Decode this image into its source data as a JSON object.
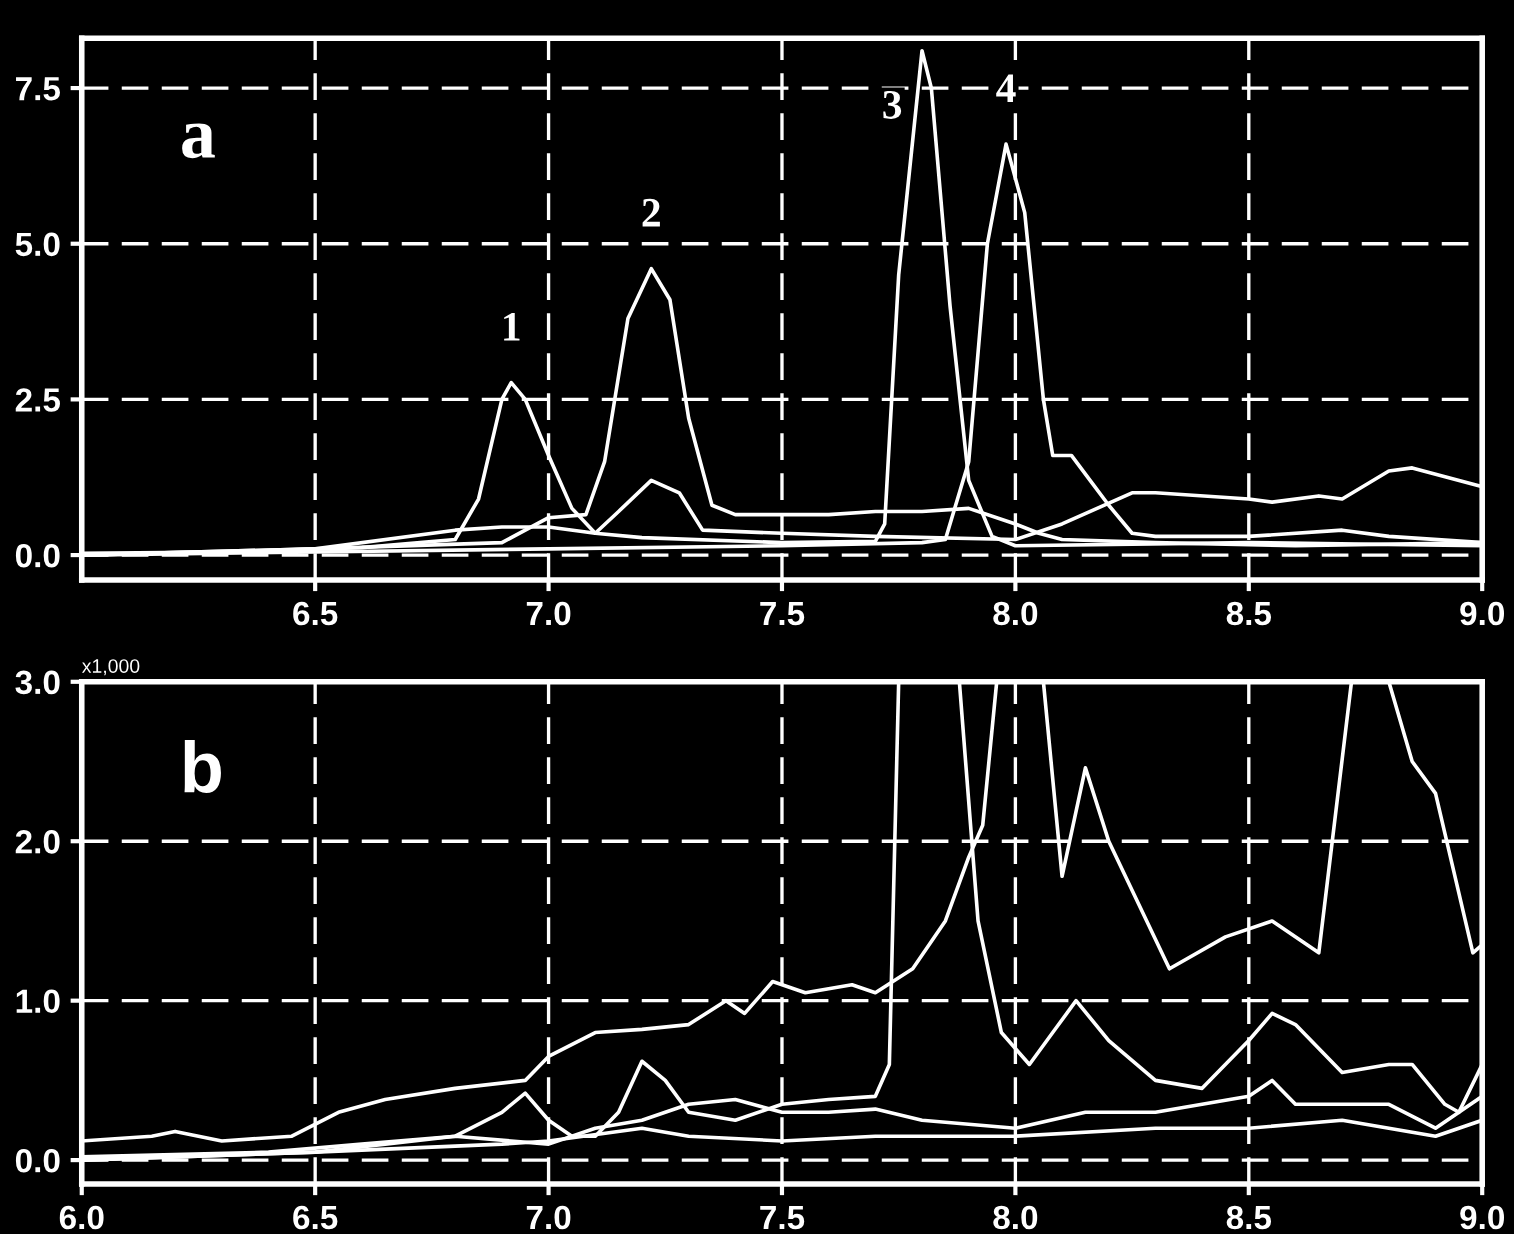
{
  "chart_data": [
    {
      "type": "line",
      "xlim": [
        6.0,
        9.0
      ],
      "ylim": [
        -0.4,
        8.3
      ],
      "xticks": [
        {
          "value": 6.5,
          "label": "6.5"
        },
        {
          "value": 7.0,
          "label": "7.0"
        },
        {
          "value": 7.5,
          "label": "7.5"
        },
        {
          "value": 8.0,
          "label": "8.0"
        },
        {
          "value": 8.5,
          "label": "8.5"
        },
        {
          "value": 9.0,
          "label": "9.0"
        }
      ],
      "yticks": [
        {
          "value": 0.0,
          "label": "0.0"
        },
        {
          "value": 2.5,
          "label": "2.5"
        },
        {
          "value": 5.0,
          "label": "5.0"
        },
        {
          "value": 7.5,
          "label": "7.5"
        }
      ],
      "grid": true,
      "line_style": "solid",
      "annotations": [
        "a",
        {
          "text": "1",
          "x": 6.92,
          "y": 2.77
        },
        {
          "text": "2",
          "x": 7.22,
          "y": 4.6
        },
        {
          "text": "3",
          "x": 7.8,
          "y": 8.1
        },
        {
          "text": "4",
          "x": 7.98,
          "y": 6.6
        }
      ],
      "series": [
        {
          "color": "#ffffff",
          "x": [
            6.0,
            6.3,
            6.6,
            6.8,
            6.85,
            6.9,
            6.92,
            6.95,
            7.0,
            7.05,
            7.1,
            7.2,
            7.5,
            7.7,
            7.72,
            7.75,
            7.8,
            7.82,
            7.86,
            7.9,
            7.95,
            8.0,
            8.5,
            9.0
          ],
          "values": [
            0.03,
            0.05,
            0.12,
            0.25,
            0.9,
            2.5,
            2.77,
            2.5,
            1.6,
            0.75,
            0.35,
            0.28,
            0.2,
            0.22,
            0.5,
            4.5,
            8.1,
            7.5,
            4.0,
            1.2,
            0.3,
            0.15,
            0.2,
            0.15
          ]
        },
        {
          "color": "#ffffff",
          "x": [
            6.0,
            6.5,
            6.9,
            7.0,
            7.08,
            7.12,
            7.17,
            7.22,
            7.26,
            7.3,
            7.35,
            7.4,
            7.6,
            7.7,
            7.8,
            7.9,
            8.0,
            8.05,
            8.1,
            8.3,
            8.6,
            9.0
          ],
          "values": [
            0.0,
            0.1,
            0.2,
            0.6,
            0.65,
            1.5,
            3.8,
            4.6,
            4.1,
            2.2,
            0.8,
            0.65,
            0.65,
            0.7,
            0.7,
            0.75,
            0.5,
            0.35,
            0.25,
            0.2,
            0.15,
            0.2
          ]
        },
        {
          "color": "#ffffff",
          "x": [
            6.0,
            6.5,
            7.0,
            7.5,
            7.8,
            7.85,
            7.9,
            7.94,
            7.98,
            8.02,
            8.06,
            8.08,
            8.12,
            8.16,
            8.2,
            8.25,
            8.3,
            8.5,
            8.7,
            8.8,
            9.0
          ],
          "values": [
            0.0,
            0.05,
            0.1,
            0.15,
            0.2,
            0.25,
            1.5,
            5.0,
            6.6,
            5.5,
            2.5,
            1.6,
            1.6,
            1.2,
            0.8,
            0.35,
            0.3,
            0.3,
            0.4,
            0.3,
            0.2
          ]
        },
        {
          "color": "#ffffff",
          "x": [
            6.0,
            6.5,
            6.8,
            6.9,
            7.0,
            7.1,
            7.15,
            7.22,
            7.28,
            7.33,
            7.5,
            7.7,
            8.0,
            8.1,
            8.25,
            8.3,
            8.5,
            8.55,
            8.65,
            8.7,
            8.8,
            8.85,
            9.0
          ],
          "values": [
            0.0,
            0.1,
            0.4,
            0.45,
            0.45,
            0.35,
            0.7,
            1.2,
            1.0,
            0.4,
            0.35,
            0.3,
            0.25,
            0.5,
            1.0,
            1.0,
            0.9,
            0.85,
            0.95,
            0.9,
            1.35,
            1.4,
            1.1
          ]
        }
      ]
    },
    {
      "type": "line",
      "xlim": [
        6.0,
        9.0
      ],
      "ylim": [
        -0.15,
        3.0
      ],
      "xticks": [
        {
          "value": 6.0,
          "label": "6.0"
        },
        {
          "value": 6.5,
          "label": "6.5"
        },
        {
          "value": 7.0,
          "label": "7.0"
        },
        {
          "value": 7.5,
          "label": "7.5"
        },
        {
          "value": 8.0,
          "label": "8.0"
        },
        {
          "value": 8.5,
          "label": "8.5"
        },
        {
          "value": 9.0,
          "label": "9.0"
        }
      ],
      "yticks": [
        {
          "value": 0.0,
          "label": "0.0"
        },
        {
          "value": 1.0,
          "label": "1.0"
        },
        {
          "value": 2.0,
          "label": "2.0"
        },
        {
          "value": 3.0,
          "label": "3.0"
        }
      ],
      "grid": true,
      "line_style": "solid",
      "annotations": [
        "b",
        "x1,000"
      ],
      "series": [
        {
          "color": "#ffffff",
          "x": [
            6.0,
            6.15,
            6.2,
            6.3,
            6.45,
            6.55,
            6.65,
            6.8,
            6.95,
            7.0,
            7.1,
            7.2,
            7.3,
            7.38,
            7.42,
            7.48,
            7.55,
            7.65,
            7.7,
            7.78,
            7.85,
            7.9,
            7.93,
            7.96,
            8.0,
            8.06,
            8.1,
            8.15,
            8.2,
            8.33,
            8.45,
            8.55,
            8.65,
            8.72,
            8.76,
            8.8,
            8.85,
            8.9,
            8.98,
            9.0
          ],
          "values": [
            0.12,
            0.15,
            0.18,
            0.12,
            0.15,
            0.3,
            0.38,
            0.45,
            0.5,
            0.65,
            0.8,
            0.82,
            0.85,
            1.0,
            0.92,
            1.12,
            1.05,
            1.1,
            1.05,
            1.2,
            1.5,
            1.9,
            2.1,
            3.0,
            null,
            3.0,
            1.78,
            2.46,
            2.0,
            1.2,
            1.4,
            1.5,
            1.3,
            3.0,
            null,
            3.0,
            2.5,
            2.3,
            1.3,
            1.35
          ]
        },
        {
          "color": "#ffffff",
          "x": [
            6.0,
            6.5,
            6.8,
            6.9,
            6.95,
            7.0,
            7.05,
            7.1,
            7.15,
            7.2,
            7.25,
            7.3,
            7.4,
            7.5,
            7.6,
            7.7,
            7.73,
            7.75,
            7.8,
            7.88,
            7.92,
            7.97,
            8.03,
            8.08,
            8.13,
            8.2,
            8.3,
            8.4,
            8.5,
            8.55,
            8.6,
            8.7,
            8.8,
            8.85,
            8.92,
            8.95,
            9.0
          ],
          "values": [
            0.0,
            0.05,
            0.15,
            0.3,
            0.42,
            0.25,
            0.15,
            0.15,
            0.3,
            0.62,
            0.5,
            0.3,
            0.25,
            0.35,
            0.38,
            0.4,
            0.6,
            3.0,
            null,
            3.0,
            1.5,
            0.8,
            0.6,
            0.8,
            1.0,
            0.75,
            0.5,
            0.45,
            0.75,
            0.92,
            0.85,
            0.55,
            0.6,
            0.6,
            0.35,
            0.3,
            0.6
          ]
        },
        {
          "color": "#ffffff",
          "x": [
            6.0,
            6.4,
            6.6,
            6.8,
            7.0,
            7.1,
            7.2,
            7.3,
            7.4,
            7.5,
            7.6,
            7.7,
            7.8,
            8.0,
            8.15,
            8.3,
            8.5,
            8.55,
            8.6,
            8.8,
            8.9,
            9.0
          ],
          "values": [
            0.02,
            0.05,
            0.1,
            0.15,
            0.1,
            0.2,
            0.25,
            0.35,
            0.38,
            0.3,
            0.3,
            0.32,
            0.25,
            0.2,
            0.3,
            0.3,
            0.4,
            0.5,
            0.35,
            0.35,
            0.2,
            0.4
          ]
        },
        {
          "color": "#ffffff",
          "x": [
            6.0,
            6.5,
            6.9,
            7.0,
            7.2,
            7.3,
            7.5,
            7.7,
            8.0,
            8.3,
            8.5,
            8.7,
            8.9,
            9.0
          ],
          "values": [
            0.0,
            0.05,
            0.1,
            0.12,
            0.2,
            0.15,
            0.12,
            0.15,
            0.15,
            0.2,
            0.2,
            0.25,
            0.15,
            0.25
          ]
        }
      ]
    }
  ]
}
